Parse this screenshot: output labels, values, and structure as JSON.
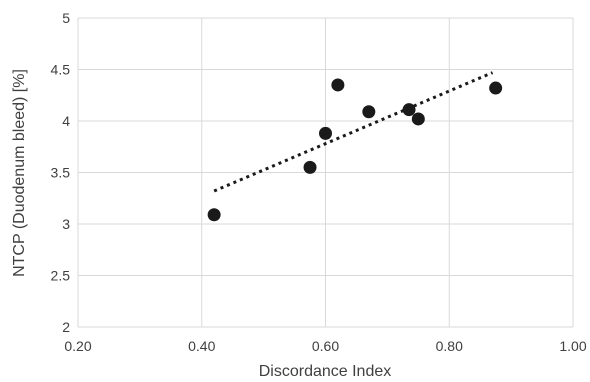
{
  "chart_data": {
    "type": "scatter",
    "title": "",
    "xlabel": "Discordance Index",
    "ylabel": "NTCP (Duodenum bleed) [%]",
    "xlim": [
      0.2,
      1.0
    ],
    "ylim": [
      2,
      5
    ],
    "x_ticks": [
      "0.20",
      "0.40",
      "0.60",
      "0.80",
      "1.00"
    ],
    "y_ticks": [
      "2",
      "2.5",
      "3",
      "3.5",
      "4",
      "4.5",
      "5"
    ],
    "grid": true,
    "legend": "none",
    "series": [
      {
        "points": [
          {
            "x": 0.42,
            "y": 3.09
          },
          {
            "x": 0.575,
            "y": 3.55
          },
          {
            "x": 0.6,
            "y": 3.88
          },
          {
            "x": 0.62,
            "y": 4.35
          },
          {
            "x": 0.67,
            "y": 4.09
          },
          {
            "x": 0.735,
            "y": 4.11
          },
          {
            "x": 0.75,
            "y": 4.02
          },
          {
            "x": 0.875,
            "y": 4.32
          }
        ],
        "color": "#1a1a1a"
      }
    ],
    "trendline": {
      "style": "dotted",
      "type": "linear",
      "from": {
        "x": 0.42,
        "y": 3.32
      },
      "to": {
        "x": 0.87,
        "y": 4.47
      }
    }
  }
}
